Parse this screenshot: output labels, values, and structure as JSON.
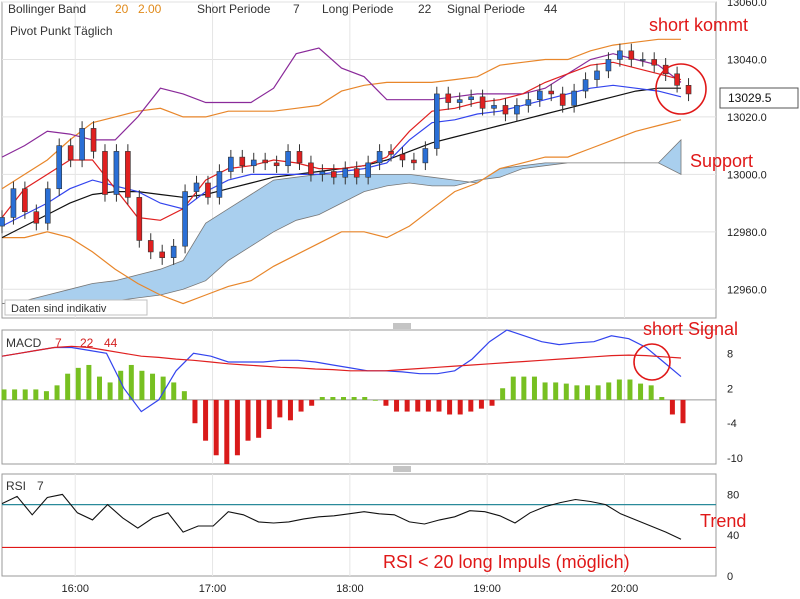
{
  "header": {
    "bb_name": "Bollinger Band",
    "bb_period": "20",
    "bb_dev": "2.00",
    "short_label": "Short Periode",
    "short_value": "7",
    "long_label": "Long Periode",
    "long_value": "22",
    "signal_label": "Signal Periode",
    "signal_value": "44",
    "pivot": "Pivot Punkt  Täglich"
  },
  "colors": {
    "up": "#2a6fd6",
    "down": "#e02020",
    "bb": "#e8862a",
    "ma_red": "#e02020",
    "ma_blue": "#3344ee",
    "ma_black": "#111111",
    "purple": "#8a2a9a",
    "cloud": "#a9cfee",
    "macd_pos": "#77c021",
    "macd_neg": "#d91a1a",
    "rsi_line": "#111111",
    "rsi_teal": "#2a8a9a",
    "annotation": "#e01818"
  },
  "notice": "Daten sind indikativ",
  "price_box": "13029.5",
  "annotations": {
    "short_kommt": "short kommt",
    "support": "Support",
    "short_signal": "short Signal",
    "trend": "Trend",
    "rsi_note": "RSI < 20 long Impuls (möglich)"
  },
  "chart_data": [
    {
      "type": "candlestick",
      "title": "",
      "ylim": [
        12950,
        13060
      ],
      "y_ticks": [
        "13060.0",
        "13040.0",
        "13020.0",
        "13000.0",
        "12980.0",
        "12960.0"
      ],
      "x_ticks": [
        "16:00",
        "17:00",
        "18:00",
        "19:00",
        "20:00"
      ],
      "x_range": [
        "15:28",
        "20:40"
      ],
      "candles": [
        {
          "t": "15:28",
          "o": 12982,
          "c": 12985
        },
        {
          "t": "15:33",
          "o": 12985,
          "c": 12995
        },
        {
          "t": "15:38",
          "o": 12995,
          "c": 12987
        },
        {
          "t": "15:43",
          "o": 12987,
          "c": 12983
        },
        {
          "t": "15:48",
          "o": 12983,
          "c": 12995
        },
        {
          "t": "15:53",
          "o": 12995,
          "c": 13010
        },
        {
          "t": "15:58",
          "o": 13010,
          "c": 13005
        },
        {
          "t": "16:03",
          "o": 13005,
          "c": 13016
        },
        {
          "t": "16:08",
          "o": 13016,
          "c": 13008
        },
        {
          "t": "16:13",
          "o": 13008,
          "c": 12993
        },
        {
          "t": "16:18",
          "o": 12993,
          "c": 13008
        },
        {
          "t": "16:23",
          "o": 13008,
          "c": 12992
        },
        {
          "t": "16:28",
          "o": 12992,
          "c": 12977
        },
        {
          "t": "16:33",
          "o": 12977,
          "c": 12973
        },
        {
          "t": "16:38",
          "o": 12973,
          "c": 12971
        },
        {
          "t": "16:43",
          "o": 12971,
          "c": 12975
        },
        {
          "t": "16:48",
          "o": 12975,
          "c": 12994
        },
        {
          "t": "16:53",
          "o": 12994,
          "c": 12997
        },
        {
          "t": "16:58",
          "o": 12997,
          "c": 12992
        },
        {
          "t": "17:03",
          "o": 12992,
          "c": 13001
        },
        {
          "t": "17:08",
          "o": 13001,
          "c": 13006
        },
        {
          "t": "17:13",
          "o": 13006,
          "c": 13003
        },
        {
          "t": "17:18",
          "o": 13003,
          "c": 13005
        },
        {
          "t": "17:23",
          "o": 13005,
          "c": 13004
        },
        {
          "t": "17:28",
          "o": 13004,
          "c": 13003
        },
        {
          "t": "17:33",
          "o": 13003,
          "c": 13008
        },
        {
          "t": "17:38",
          "o": 13008,
          "c": 13004
        },
        {
          "t": "17:43",
          "o": 13004,
          "c": 13000
        },
        {
          "t": "17:48",
          "o": 13000,
          "c": 13001
        },
        {
          "t": "17:53",
          "o": 13001,
          "c": 12999
        },
        {
          "t": "17:58",
          "o": 12999,
          "c": 13002
        },
        {
          "t": "18:03",
          "o": 13002,
          "c": 12999
        },
        {
          "t": "18:08",
          "o": 12999,
          "c": 13004
        },
        {
          "t": "18:13",
          "o": 13004,
          "c": 13008
        },
        {
          "t": "18:18",
          "o": 13008,
          "c": 13007
        },
        {
          "t": "18:23",
          "o": 13007,
          "c": 13005
        },
        {
          "t": "18:28",
          "o": 13005,
          "c": 13004
        },
        {
          "t": "18:33",
          "o": 13004,
          "c": 13009
        },
        {
          "t": "18:38",
          "o": 13009,
          "c": 13028
        },
        {
          "t": "18:43",
          "o": 13028,
          "c": 13025
        },
        {
          "t": "18:48",
          "o": 13025,
          "c": 13026
        },
        {
          "t": "18:53",
          "o": 13026,
          "c": 13027
        },
        {
          "t": "18:58",
          "o": 13027,
          "c": 13023
        },
        {
          "t": "19:03",
          "o": 13023,
          "c": 13024
        },
        {
          "t": "19:08",
          "o": 13024,
          "c": 13021
        },
        {
          "t": "19:13",
          "o": 13021,
          "c": 13024
        },
        {
          "t": "19:18",
          "o": 13024,
          "c": 13026
        },
        {
          "t": "19:23",
          "o": 13026,
          "c": 13029
        },
        {
          "t": "19:28",
          "o": 13029,
          "c": 13028
        },
        {
          "t": "19:33",
          "o": 13028,
          "c": 13024
        },
        {
          "t": "19:38",
          "o": 13024,
          "c": 13029
        },
        {
          "t": "19:43",
          "o": 13029,
          "c": 13033
        },
        {
          "t": "19:48",
          "o": 13033,
          "c": 13036
        },
        {
          "t": "19:53",
          "o": 13036,
          "c": 13040
        },
        {
          "t": "19:58",
          "o": 13040,
          "c": 13043
        },
        {
          "t": "20:03",
          "o": 13043,
          "c": 13040
        },
        {
          "t": "20:08",
          "o": 13040,
          "c": 13040
        },
        {
          "t": "20:13",
          "o": 13040,
          "c": 13038
        },
        {
          "t": "20:18",
          "o": 13038,
          "c": 13035
        },
        {
          "t": "20:23",
          "o": 13035,
          "c": 13031
        },
        {
          "t": "20:28",
          "o": 13031,
          "c": 13028
        }
      ],
      "series": [
        {
          "name": "",
          "role": "bb_upper",
          "color": "#e8862a",
          "values": [
            12995,
            13000,
            13005,
            13012,
            13018,
            13020,
            13022,
            13023,
            13020,
            13020,
            13022,
            13022,
            13022,
            13023,
            13024,
            13029,
            13031,
            13032,
            13032,
            13032,
            13033,
            13034,
            13038,
            13039,
            13040,
            13040,
            13043,
            13045,
            13046,
            13047,
            13047
          ]
        },
        {
          "name": "",
          "role": "bb_lower",
          "color": "#e8862a",
          "values": [
            12978,
            12978,
            12980,
            12978,
            12973,
            12967,
            12962,
            12958,
            12955,
            12958,
            12961,
            12963,
            12968,
            12972,
            12976,
            12980,
            12980,
            12978,
            12982,
            12988,
            12994,
            12997,
            13002,
            13004,
            13006,
            13006,
            13009,
            13012,
            13015,
            13017,
            13019
          ]
        },
        {
          "name": "",
          "role": "ma_short",
          "color": "#e02020",
          "values": [
            12985,
            12995,
            13000,
            13005,
            13005,
            12995,
            12985,
            12984,
            12988,
            12998,
            13002,
            13003,
            13005,
            13004,
            13002,
            13002,
            13003,
            13006,
            13015,
            13022,
            13023,
            13025,
            13026,
            13028,
            13032,
            13035,
            13038,
            13039,
            13037,
            13035,
            13033
          ]
        },
        {
          "name": "",
          "role": "ma_mid",
          "color": "#3344ee",
          "values": [
            12982,
            12986,
            12990,
            12995,
            12998,
            12996,
            12994,
            12990,
            12988,
            12994,
            12998,
            13000,
            13000,
            13000,
            13000,
            13001,
            13002,
            13004,
            13012,
            13018,
            13019,
            13021,
            13022,
            13024,
            13026,
            13028,
            13030,
            13031,
            13030,
            13029,
            13027
          ]
        },
        {
          "name": "",
          "role": "ma_long",
          "color": "#111111",
          "values": [
            12978,
            12982,
            12986,
            12990,
            12993,
            12994,
            12994,
            12993,
            12992,
            12993,
            12995,
            12997,
            12999,
            13000,
            13001,
            13002,
            13003,
            13005,
            13008,
            13011,
            13013,
            13015,
            13017,
            13019,
            13021,
            13023,
            13025,
            13027,
            13029,
            13030,
            13030
          ]
        },
        {
          "name": "",
          "role": "purple",
          "color": "#8a2a9a",
          "values": [
            13006,
            13010,
            13015,
            13014,
            13012,
            13012,
            13020,
            13030,
            13028,
            13025,
            13025,
            13025,
            13030,
            13042,
            13044,
            13037,
            13034,
            13026,
            13026,
            13026,
            13027,
            13028,
            13028,
            13028,
            13030,
            13035,
            13040,
            13042,
            13040,
            13038,
            13032
          ]
        },
        {
          "name": "",
          "role": "cloud_top",
          "color": "#a9cfee",
          "values": [
            12955,
            12956,
            12958,
            12960,
            12962,
            12963,
            12965,
            12967,
            12970,
            12983,
            12988,
            12993,
            12998,
            12999,
            13000,
            13000,
            13000,
            13000,
            13000,
            12999,
            12998,
            12997,
            13002,
            13003,
            13004,
            13004,
            13004,
            13004,
            13004,
            13004,
            13012
          ]
        },
        {
          "name": "",
          "role": "cloud_bottom",
          "color": "#a9cfee",
          "values": [
            12955,
            12955,
            12955,
            12955,
            12955,
            12956,
            12957,
            12958,
            12960,
            12963,
            12970,
            12975,
            12980,
            12984,
            12986,
            12990,
            12994,
            12996,
            12997,
            12996,
            12996,
            12998,
            12999,
            13002,
            13003,
            13004,
            13004,
            13004,
            13004,
            13004,
            13000
          ]
        }
      ]
    },
    {
      "type": "bar",
      "title": "MACD",
      "params": [
        "7",
        "22",
        "44"
      ],
      "ylim": [
        -11,
        12
      ],
      "y_ticks": [
        "8",
        "2",
        "-4",
        "-10"
      ],
      "values": [
        1.8,
        1.8,
        1.8,
        1.8,
        1.5,
        2.5,
        4.5,
        5.5,
        6.0,
        4.0,
        3.0,
        5.0,
        6.0,
        5.0,
        4.5,
        4.0,
        3.0,
        1.5,
        -4.0,
        -7.0,
        -9.5,
        -11.0,
        -9.5,
        -7.0,
        -6.5,
        -5.0,
        -3.0,
        -3.5,
        -2.0,
        -1.0,
        0.5,
        0.5,
        0.5,
        0.5,
        0.5,
        0.0,
        -1.0,
        -2.0,
        -2.0,
        -2.0,
        -2.0,
        -2.0,
        -2.5,
        -2.5,
        -2.0,
        -1.5,
        -1.0,
        2.0,
        4.0,
        4.0,
        4.0,
        3.0,
        3.0,
        2.8,
        2.5,
        2.5,
        2.5,
        3.0,
        3.5,
        3.5,
        2.8,
        2.5,
        0.5,
        -2.5,
        -4.0
      ],
      "series": [
        {
          "name": "",
          "role": "macd_line",
          "color": "#3344ee",
          "values": [
            7.5,
            8.0,
            8.5,
            9.0,
            9.0,
            8.5,
            8.0,
            2.0,
            -2.0,
            0.0,
            5.0,
            8.0,
            7.5,
            6.5,
            6.5,
            6.5,
            6.8,
            6.8,
            6.5,
            6.0,
            5.5,
            5.0,
            5.0,
            4.8,
            4.5,
            4.5,
            5.0,
            7.0,
            10.0,
            12.0,
            11.0,
            10.0,
            9.5,
            9.8,
            10.0,
            11.0,
            10.5,
            9.0,
            6.5,
            4.0
          ]
        },
        {
          "name": "",
          "role": "signal_line",
          "color": "#e02020",
          "values": [
            7.5,
            8.0,
            8.5,
            9.0,
            9.2,
            9.0,
            8.5,
            8.0,
            7.5,
            7.3,
            7.0,
            6.8,
            6.5,
            6.2,
            6.0,
            5.8,
            5.6,
            5.5,
            5.3,
            5.2,
            5.0,
            5.0,
            5.0,
            5.2,
            5.4,
            5.6,
            5.8,
            6.0,
            6.2,
            6.4,
            6.6,
            6.8,
            7.0,
            7.2,
            7.4,
            7.6,
            7.7,
            7.6,
            7.4,
            7.2
          ]
        }
      ]
    },
    {
      "type": "line",
      "title": "RSI",
      "params": [
        "7"
      ],
      "ylim": [
        0,
        100
      ],
      "y_ticks": [
        "80",
        "40",
        "0"
      ],
      "series": [
        {
          "name": "",
          "role": "rsi",
          "color": "#111111",
          "values": [
            71,
            78,
            60,
            77,
            80,
            62,
            55,
            70,
            57,
            47,
            57,
            62,
            43,
            49,
            49,
            63,
            60,
            53,
            52,
            53,
            56,
            58,
            59,
            61,
            63,
            61,
            60,
            53,
            51,
            55,
            58,
            64,
            63,
            59,
            52,
            62,
            68,
            72,
            75,
            73,
            70,
            61,
            55,
            49,
            43,
            36
          ]
        }
      ],
      "levels": [
        {
          "value": 70,
          "color": "#2a8a9a"
        },
        {
          "value": 28,
          "color": "#e01818"
        }
      ]
    }
  ]
}
